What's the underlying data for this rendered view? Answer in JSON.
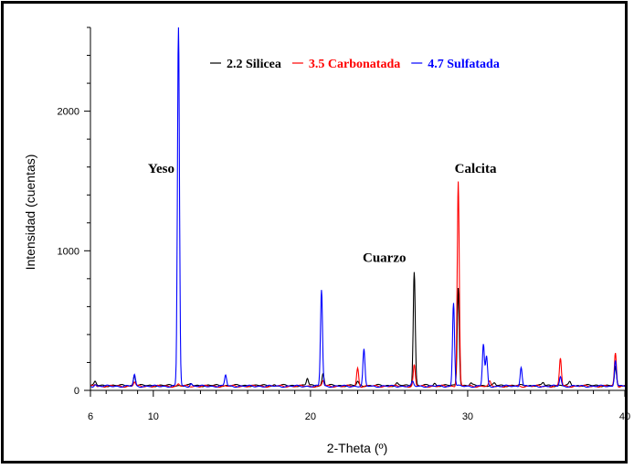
{
  "chart_data": {
    "type": "line",
    "xlabel": "2-Theta (º)",
    "ylabel": "Intensidad (cuentas)",
    "xlim": [
      6,
      40
    ],
    "ylim": [
      0,
      2600
    ],
    "x_ticks": [
      "6",
      "10",
      "20",
      "30",
      "40"
    ],
    "x_tick_values": [
      6,
      10,
      20,
      30,
      40
    ],
    "y_ticks": [
      "0",
      "1000",
      "2000"
    ],
    "y_tick_values": [
      0,
      1000,
      2000
    ],
    "legend_position": "top-right",
    "series": [
      {
        "name": "2.2 Silicea",
        "color": "#000000",
        "baseline": 35,
        "peaks": [
          [
            6.3,
            60
          ],
          [
            8.8,
            110
          ],
          [
            12.4,
            45
          ],
          [
            17.7,
            40
          ],
          [
            19.8,
            85
          ],
          [
            20.8,
            120
          ],
          [
            23.0,
            60
          ],
          [
            25.5,
            50
          ],
          [
            26.6,
            850
          ],
          [
            27.9,
            50
          ],
          [
            29.4,
            740
          ],
          [
            30.2,
            50
          ],
          [
            31.7,
            50
          ],
          [
            34.8,
            55
          ],
          [
            36.5,
            60
          ],
          [
            39.4,
            160
          ]
        ]
      },
      {
        "name": "3.5 Carbonatada",
        "color": "#ff0000",
        "baseline": 30,
        "peaks": [
          [
            6.3,
            45
          ],
          [
            8.8,
            60
          ],
          [
            11.6,
            45
          ],
          [
            20.8,
            70
          ],
          [
            23.0,
            160
          ],
          [
            26.6,
            180
          ],
          [
            29.4,
            1500
          ],
          [
            31.4,
            60
          ],
          [
            35.9,
            230
          ],
          [
            39.4,
            270
          ]
        ]
      },
      {
        "name": "4.7 Sulfatada",
        "color": "#0000ff",
        "baseline": 30,
        "peaks": [
          [
            6.3,
            45
          ],
          [
            8.8,
            110
          ],
          [
            11.6,
            2600
          ],
          [
            12.4,
            50
          ],
          [
            14.6,
            110
          ],
          [
            20.7,
            720
          ],
          [
            23.4,
            290
          ],
          [
            26.5,
            60
          ],
          [
            29.1,
            630
          ],
          [
            31.0,
            330
          ],
          [
            31.2,
            240
          ],
          [
            33.4,
            170
          ],
          [
            35.9,
            100
          ],
          [
            39.4,
            220
          ]
        ]
      }
    ],
    "annotations": [
      {
        "text": "Yeso",
        "x": 10.5,
        "y": 1560
      },
      {
        "text": "Cuarzo",
        "x": 24.7,
        "y": 920
      },
      {
        "text": "Calcita",
        "x": 30.5,
        "y": 1560
      }
    ]
  }
}
